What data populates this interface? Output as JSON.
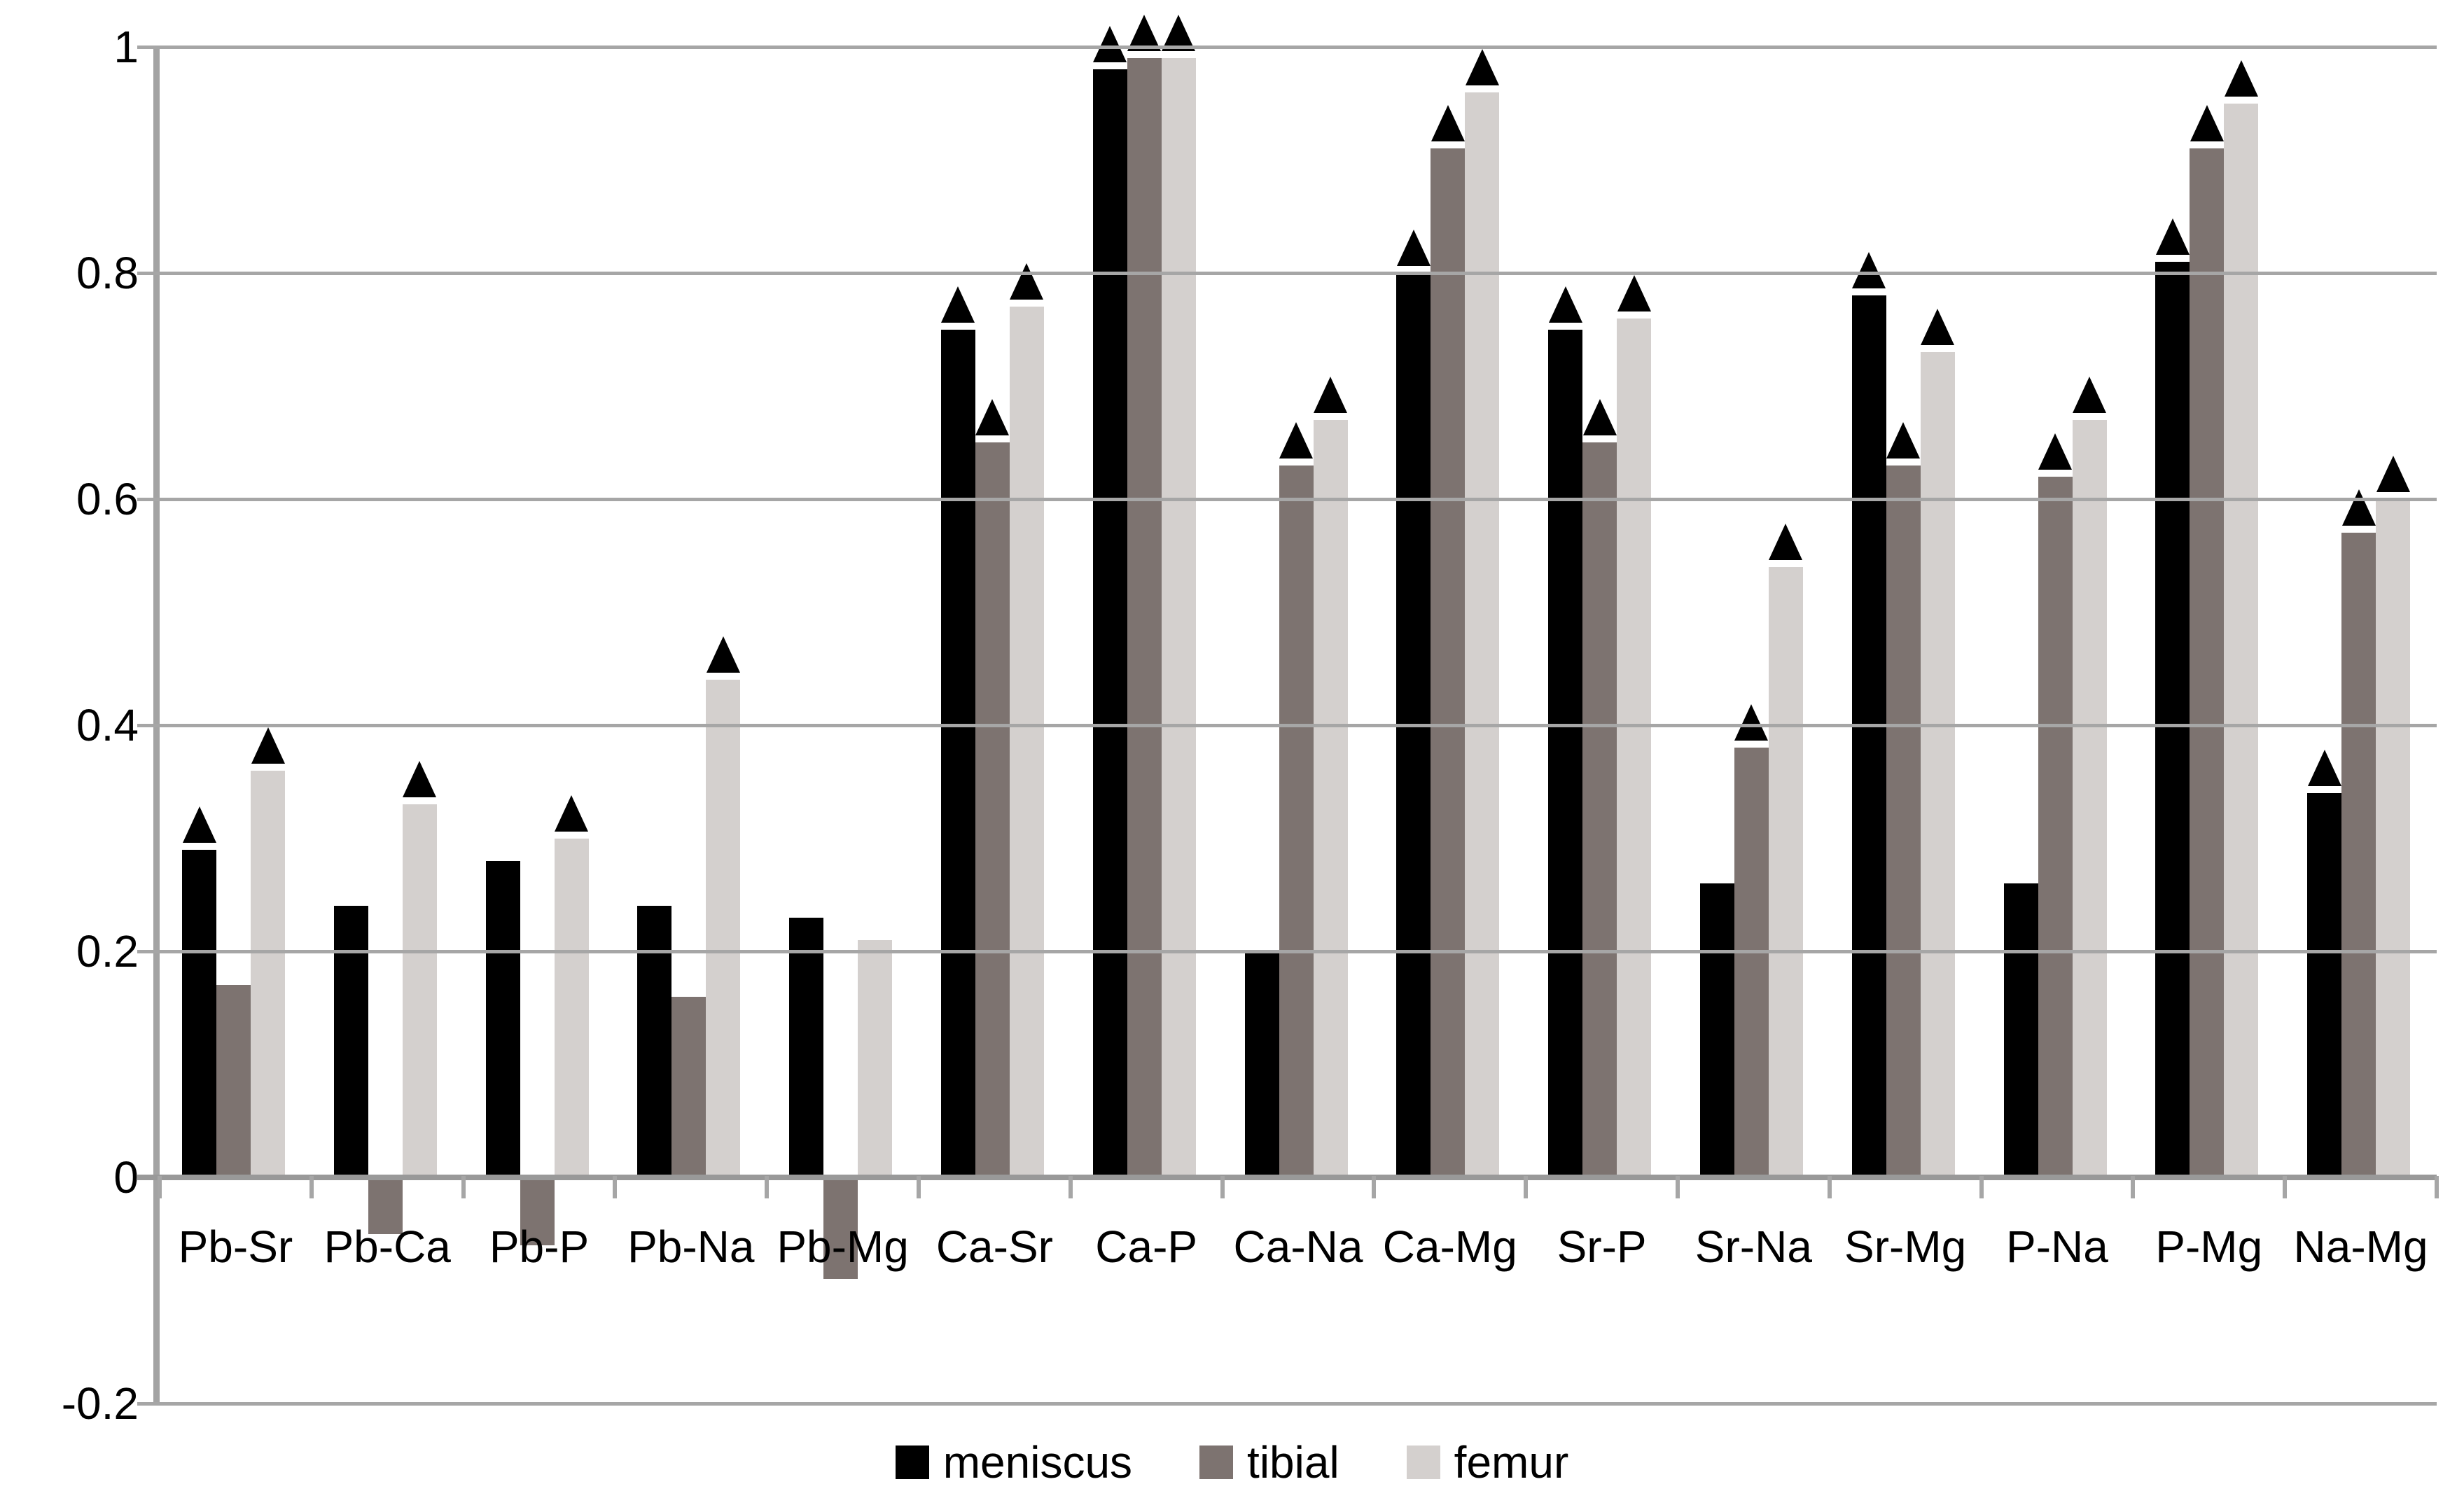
{
  "chart_data": {
    "type": "bar",
    "title": "",
    "xlabel": "",
    "ylabel": "",
    "categories": [
      "Pb-Sr",
      "Pb-Ca",
      "Pb-P",
      "Pb-Na",
      "Pb-Mg",
      "Ca-Sr",
      "Ca-P",
      "Ca-Na",
      "Ca-Mg",
      "Sr-P",
      "Sr-Na",
      "Sr-Mg",
      "P-Na",
      "P-Mg",
      "Na-Mg"
    ],
    "series": [
      {
        "name": "meniscus",
        "color": "#000000",
        "values": [
          0.29,
          0.24,
          0.28,
          0.24,
          0.23,
          0.75,
          0.98,
          0.2,
          0.8,
          0.75,
          0.26,
          0.78,
          0.26,
          0.81,
          0.34
        ],
        "significant": [
          true,
          false,
          false,
          false,
          false,
          true,
          true,
          false,
          true,
          true,
          false,
          true,
          false,
          true,
          true
        ]
      },
      {
        "name": "tibial",
        "color": "#7d7370",
        "values": [
          0.17,
          -0.05,
          -0.06,
          0.16,
          -0.09,
          0.65,
          0.99,
          0.63,
          0.91,
          0.65,
          0.38,
          0.63,
          0.62,
          0.91,
          0.57
        ],
        "significant": [
          false,
          false,
          false,
          false,
          false,
          true,
          true,
          true,
          true,
          true,
          true,
          true,
          true,
          true,
          true
        ]
      },
      {
        "name": "femur",
        "color": "#d4d0ce",
        "values": [
          0.36,
          0.33,
          0.3,
          0.44,
          0.21,
          0.77,
          0.99,
          0.67,
          0.96,
          0.76,
          0.54,
          0.73,
          0.67,
          0.95,
          0.6
        ],
        "significant": [
          true,
          true,
          true,
          true,
          false,
          true,
          true,
          true,
          true,
          true,
          true,
          true,
          true,
          true,
          true
        ]
      }
    ],
    "y_axis": {
      "min": -0.2,
      "max": 1.0,
      "tick_step": 0.2,
      "tick_values": [
        1.0,
        0.8,
        0.6,
        0.4,
        0.2,
        0,
        -0.2
      ],
      "tick_labels": [
        "1",
        "0.8",
        "0.6",
        "0.4",
        "0.2",
        "0",
        "-0.2"
      ]
    },
    "grid": true,
    "legend_position": "bottom",
    "significance_marker": "filled-triangle",
    "gridline_color": "#a6a6a6",
    "axis_color": "#9e9e9e"
  },
  "legend": {
    "items": [
      {
        "label": "meniscus"
      },
      {
        "label": "tibial"
      },
      {
        "label": "femur"
      }
    ]
  }
}
